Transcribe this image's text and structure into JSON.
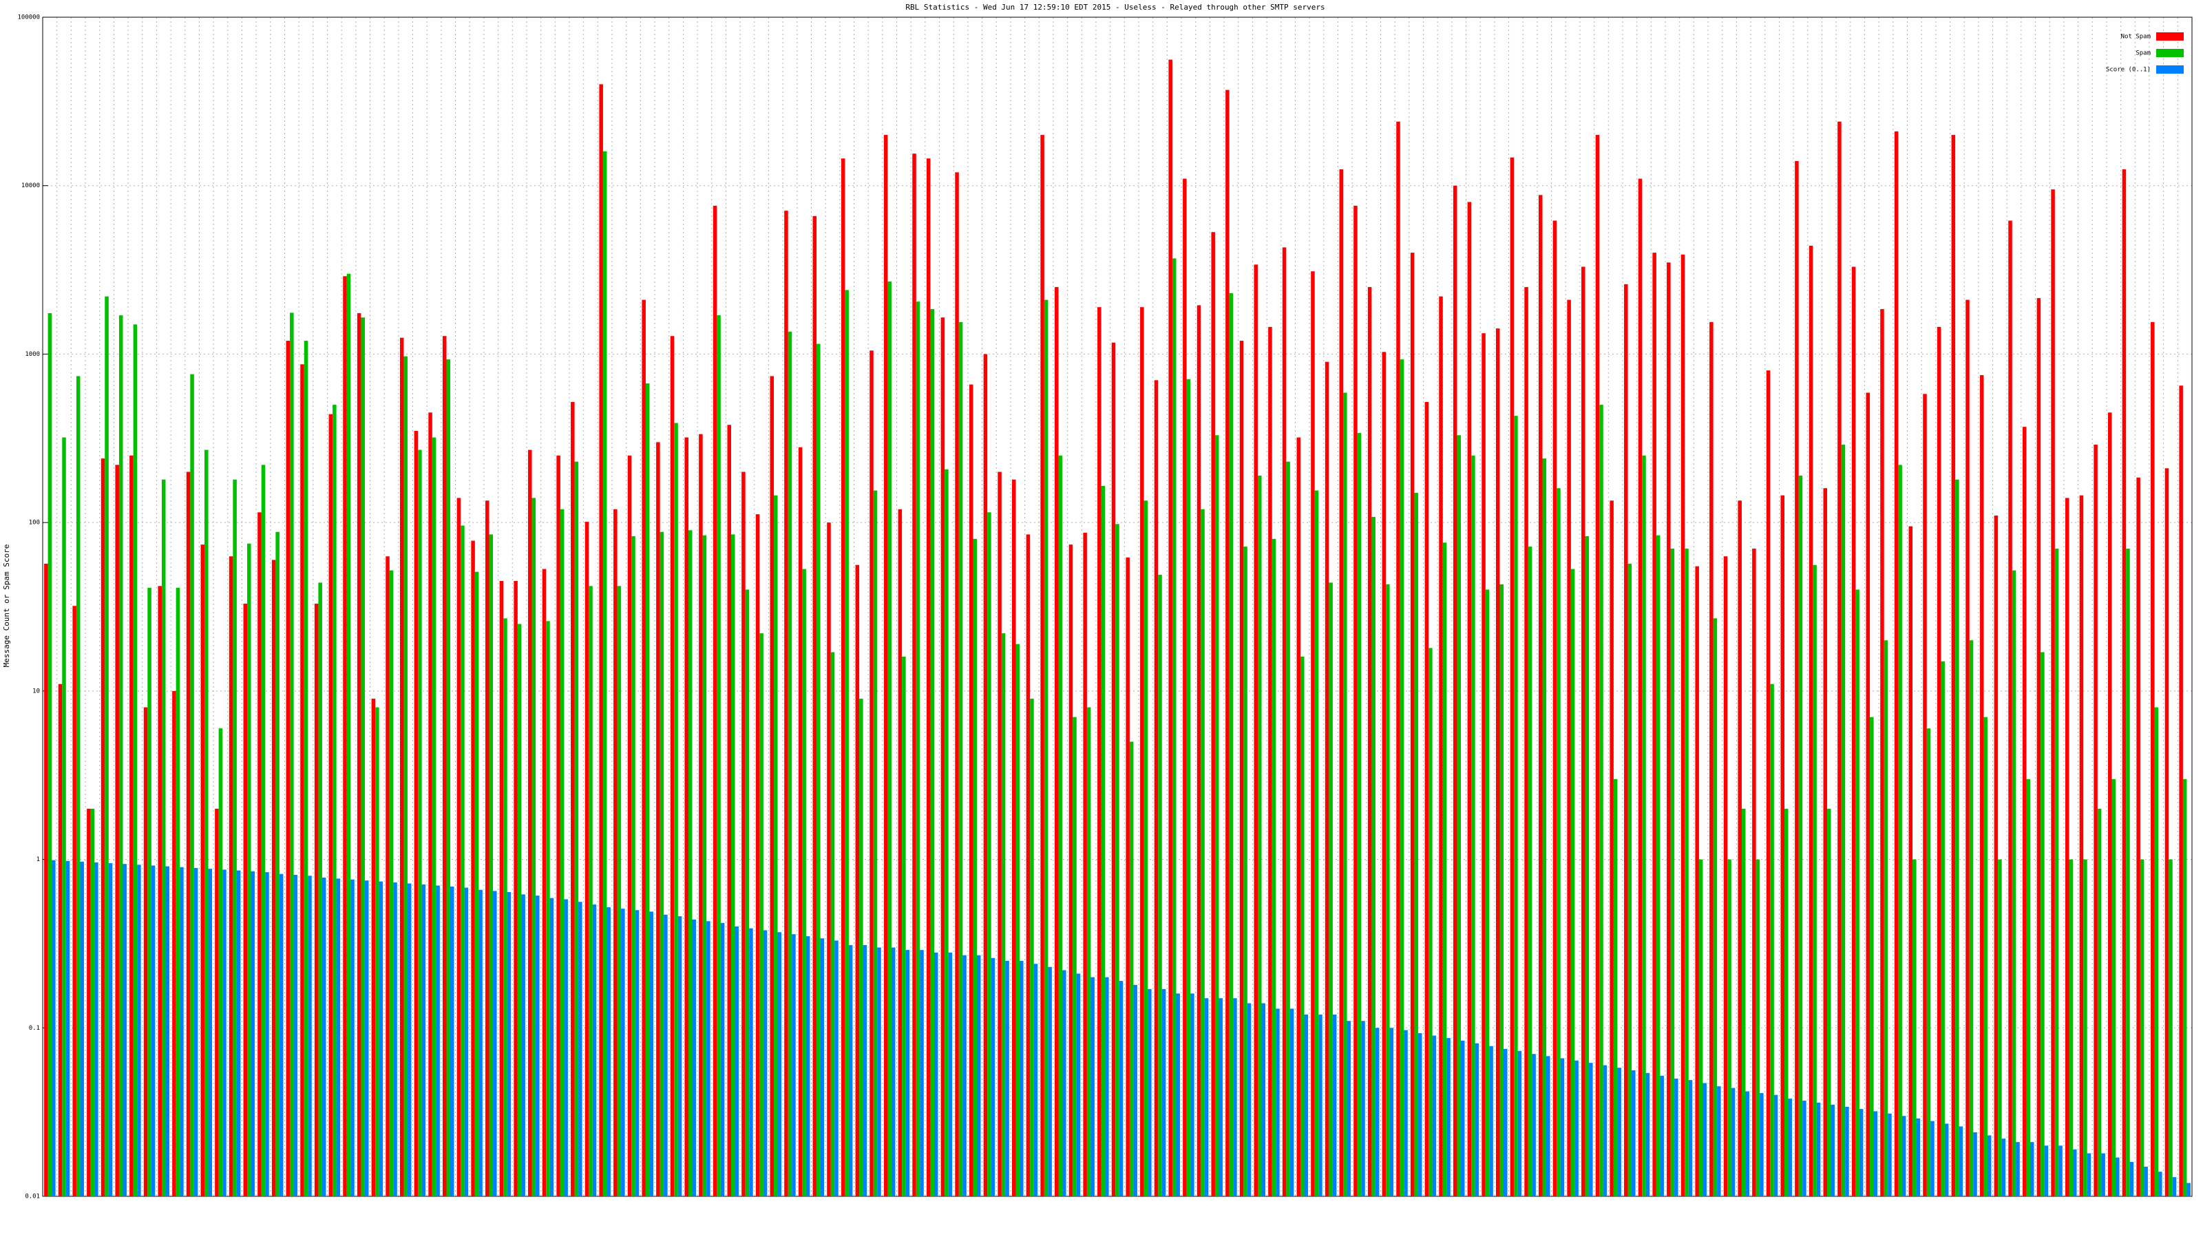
{
  "chart_data": {
    "type": "bar",
    "title": "RBL Statistics - Wed Jun 17 12:59:10 EDT 2015 - Useless - Relayed through other SMTP servers",
    "y_label": "Message Count or Spam Score",
    "log_scale": true,
    "grid": true,
    "legend": "top-right",
    "ylim": [
      0.01,
      100000
    ],
    "yticks": [
      0.01,
      0.1,
      1,
      10,
      100,
      1000,
      10000,
      100000
    ],
    "categories": [
      null,
      null,
      null,
      null,
      null,
      null,
      null,
      null,
      null,
      null,
      null,
      null,
      null,
      null,
      null,
      null,
      null,
      null,
      null,
      null,
      null,
      null,
      null,
      null,
      null,
      null,
      null,
      null,
      null,
      null,
      null,
      null,
      null,
      null,
      null,
      null,
      null,
      null,
      null,
      null,
      null,
      null,
      null,
      null,
      null,
      null,
      null,
      null,
      null,
      null,
      null,
      null,
      null,
      null,
      null,
      null,
      null,
      null,
      null,
      null,
      null,
      null,
      null,
      null,
      null,
      null,
      null,
      null,
      null,
      null,
      null,
      null,
      null,
      null,
      null,
      null,
      null,
      null,
      null,
      null,
      null,
      null,
      null,
      null,
      null,
      null,
      null,
      null,
      null,
      null,
      null,
      null,
      null,
      null,
      null,
      null,
      null,
      null,
      null,
      null,
      null,
      null,
      null,
      null,
      null,
      null,
      null,
      null,
      null,
      null,
      null,
      null,
      null,
      null,
      null,
      null,
      null,
      null,
      null,
      null,
      null,
      null,
      null,
      null,
      null,
      null,
      null,
      null,
      null,
      null,
      null,
      null,
      null,
      null,
      null,
      null,
      null,
      null,
      null,
      null,
      null,
      null,
      null,
      null,
      null,
      null,
      null,
      null,
      null,
      null,
      null
    ],
    "series": [
      {
        "name": "Not Spam",
        "color": "#ff0000",
        "values": [
          57,
          11,
          32,
          2,
          240,
          220,
          250,
          8,
          42,
          10,
          200,
          74,
          2,
          63,
          33,
          115,
          60,
          1200,
          870,
          33,
          440,
          2900,
          1750,
          9,
          63,
          1250,
          350,
          450,
          1280,
          140,
          78,
          135,
          45,
          45,
          270,
          53,
          250,
          520,
          101,
          40000,
          120,
          250,
          2100,
          300,
          1280,
          320,
          335,
          7600,
          380,
          200,
          112,
          740,
          7100,
          280,
          6600,
          100,
          14500,
          56,
          1050,
          20000,
          120,
          15500,
          14500,
          1650,
          12000,
          660,
          1000,
          200,
          180,
          85,
          20000,
          2500,
          74,
          87,
          1900,
          1170,
          62,
          1900,
          700,
          56000,
          11000,
          1950,
          5300,
          37000,
          1200,
          3400,
          1450,
          4300,
          320,
          3100,
          900,
          12500,
          7600,
          2500,
          1030,
          24000,
          4000,
          520,
          2200,
          10000,
          8000,
          1330,
          1420,
          14700,
          2500,
          8800,
          6200,
          2100,
          3300,
          20000,
          135,
          2600,
          11000,
          4000,
          3500,
          3900,
          55,
          1550,
          63,
          135,
          70,
          800,
          145,
          14000,
          4400,
          160,
          24000,
          3300,
          590,
          1850,
          21000,
          95,
          580,
          1450,
          20000,
          2100,
          750,
          110,
          6200,
          370,
          2150,
          9500,
          140,
          145,
          290,
          450,
          12500,
          185,
          1550,
          210,
          650
        ]
      },
      {
        "name": "Spam",
        "color": "#00c000",
        "values": [
          1750,
          320,
          740,
          2,
          2200,
          1700,
          1500,
          41,
          180,
          41,
          760,
          270,
          6,
          180,
          75,
          220,
          88,
          1760,
          1200,
          44,
          500,
          3000,
          1650,
          8,
          52,
          970,
          270,
          320,
          930,
          96,
          51,
          85,
          27,
          25,
          140,
          26,
          120,
          230,
          42,
          16000,
          42,
          83,
          670,
          88,
          390,
          90,
          84,
          1700,
          85,
          40,
          22,
          145,
          1360,
          53,
          1150,
          17,
          2400,
          9,
          155,
          2700,
          16,
          2050,
          1850,
          207,
          1550,
          80,
          115,
          22,
          19,
          9,
          2100,
          250,
          7,
          8,
          165,
          98,
          5,
          135,
          49,
          3700,
          710,
          120,
          330,
          2300,
          72,
          190,
          80,
          230,
          16,
          155,
          44,
          590,
          340,
          108,
          43,
          930,
          150,
          18,
          76,
          330,
          250,
          40,
          43,
          430,
          72,
          240,
          160,
          53,
          83,
          500,
          3,
          57,
          250,
          84,
          70,
          70,
          1,
          27,
          1,
          2,
          1,
          11,
          2,
          190,
          56,
          2,
          290,
          40,
          7,
          20,
          220,
          1,
          6,
          15,
          180,
          20,
          7,
          1,
          52,
          3,
          17,
          70,
          1,
          1,
          2,
          3,
          70,
          1,
          8,
          1,
          3
        ]
      },
      {
        "name": "Score (0..1)",
        "color": "#0080ff",
        "values": [
          0.99,
          0.98,
          0.97,
          0.96,
          0.95,
          0.94,
          0.93,
          0.92,
          0.91,
          0.9,
          0.89,
          0.88,
          0.87,
          0.86,
          0.85,
          0.84,
          0.82,
          0.81,
          0.8,
          0.78,
          0.77,
          0.76,
          0.75,
          0.74,
          0.73,
          0.72,
          0.71,
          0.7,
          0.69,
          0.68,
          0.66,
          0.65,
          0.64,
          0.62,
          0.61,
          0.59,
          0.58,
          0.56,
          0.54,
          0.52,
          0.51,
          0.5,
          0.49,
          0.47,
          0.46,
          0.44,
          0.43,
          0.42,
          0.4,
          0.39,
          0.38,
          0.37,
          0.36,
          0.35,
          0.34,
          0.33,
          0.31,
          0.31,
          0.3,
          0.3,
          0.29,
          0.29,
          0.28,
          0.28,
          0.27,
          0.27,
          0.26,
          0.25,
          0.25,
          0.24,
          0.23,
          0.22,
          0.21,
          0.2,
          0.2,
          0.19,
          0.18,
          0.17,
          0.17,
          0.16,
          0.16,
          0.15,
          0.15,
          0.15,
          0.14,
          0.14,
          0.13,
          0.13,
          0.12,
          0.12,
          0.12,
          0.11,
          0.11,
          0.1,
          0.1,
          0.097,
          0.093,
          0.09,
          0.087,
          0.084,
          0.081,
          0.078,
          0.075,
          0.073,
          0.07,
          0.068,
          0.066,
          0.064,
          0.062,
          0.06,
          0.058,
          0.056,
          0.054,
          0.052,
          0.05,
          0.049,
          0.047,
          0.045,
          0.044,
          0.042,
          0.041,
          0.04,
          0.038,
          0.037,
          0.036,
          0.035,
          0.034,
          0.033,
          0.032,
          0.031,
          0.03,
          0.029,
          0.028,
          0.027,
          0.026,
          0.024,
          0.023,
          0.022,
          0.021,
          0.021,
          0.02,
          0.02,
          0.019,
          0.018,
          0.018,
          0.017,
          0.016,
          0.015,
          0.014,
          0.013,
          0.012
        ]
      }
    ]
  }
}
